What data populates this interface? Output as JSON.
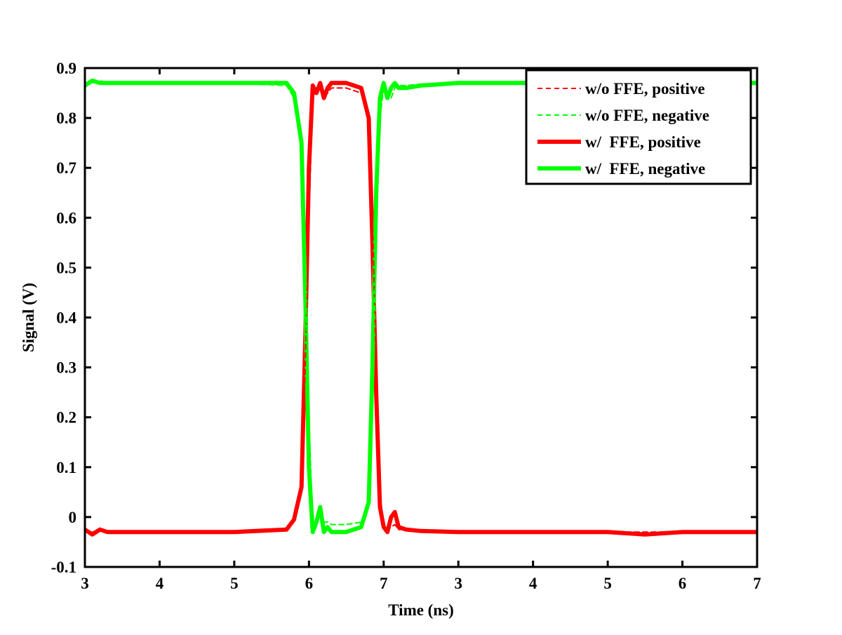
{
  "chart_data": {
    "type": "line",
    "title": "",
    "xlabel": "Time (ns)",
    "ylabel": "Signal (V)",
    "xlim": [
      0,
      9
    ],
    "ylim": [
      -0.1,
      0.9
    ],
    "x_tick_labels": [
      "3",
      "4",
      "5",
      "6",
      "7",
      "3",
      "4",
      "5",
      "6",
      "7"
    ],
    "y_ticks": [
      -0.1,
      0,
      0.1,
      0.2,
      0.3,
      0.4,
      0.5,
      0.6,
      0.7,
      0.8,
      0.9
    ],
    "y_tick_labels": [
      "-0.1",
      "0",
      "0.1",
      "0.2",
      "0.3",
      "0.4",
      "0.5",
      "0.6",
      "0.7",
      "0.8",
      "0.9"
    ],
    "grid": false,
    "legend_position": "top-right",
    "series": [
      {
        "name": "w/o FFE, positive",
        "color": "#ff0000",
        "style": "dashed",
        "x": [
          0,
          0.1,
          0.2,
          0.3,
          1.0,
          2.0,
          2.7,
          2.8,
          2.9,
          2.95,
          3.0,
          3.05,
          3.1,
          3.15,
          3.2,
          3.25,
          3.3,
          3.5,
          3.7,
          3.8,
          3.85,
          3.9,
          3.95,
          4.0,
          4.05,
          4.1,
          4.15,
          4.2,
          4.3,
          4.5,
          5.0,
          6.0,
          7.0,
          8.0,
          9.0
        ],
        "y": [
          -0.025,
          -0.03,
          -0.025,
          -0.03,
          -0.03,
          -0.03,
          -0.025,
          -0.01,
          0.05,
          0.3,
          0.6,
          0.84,
          0.86,
          0.86,
          0.84,
          0.85,
          0.86,
          0.86,
          0.85,
          0.8,
          0.6,
          0.3,
          0.05,
          -0.02,
          -0.025,
          -0.02,
          -0.015,
          -0.025,
          -0.025,
          -0.028,
          -0.03,
          -0.03,
          -0.03,
          -0.03,
          -0.03
        ]
      },
      {
        "name": "w/o FFE, negative",
        "color": "#00ff00",
        "style": "dashed",
        "x": [
          0,
          0.1,
          0.2,
          0.3,
          1.0,
          2.0,
          2.7,
          2.8,
          2.9,
          2.95,
          3.0,
          3.05,
          3.1,
          3.15,
          3.2,
          3.25,
          3.3,
          3.5,
          3.7,
          3.8,
          3.85,
          3.9,
          3.95,
          4.0,
          4.05,
          4.1,
          4.15,
          4.2,
          4.3,
          4.5,
          5.0,
          6.0,
          7.0,
          8.0,
          9.0
        ],
        "y": [
          0.865,
          0.87,
          0.875,
          0.87,
          0.87,
          0.87,
          0.865,
          0.84,
          0.75,
          0.5,
          0.2,
          -0.02,
          -0.01,
          0.01,
          -0.01,
          -0.01,
          -0.015,
          -0.015,
          -0.01,
          0.02,
          0.25,
          0.55,
          0.8,
          0.86,
          0.85,
          0.84,
          0.86,
          0.865,
          0.865,
          0.868,
          0.87,
          0.87,
          0.87,
          0.87,
          0.87
        ]
      },
      {
        "name": "w/  FFE, positive",
        "color": "#ff0000",
        "style": "solid",
        "x": [
          0,
          0.1,
          0.2,
          0.3,
          1.0,
          2.0,
          2.7,
          2.8,
          2.9,
          2.95,
          3.0,
          3.05,
          3.1,
          3.15,
          3.2,
          3.25,
          3.3,
          3.5,
          3.7,
          3.8,
          3.85,
          3.9,
          3.95,
          4.0,
          4.05,
          4.1,
          4.15,
          4.2,
          4.3,
          4.5,
          5.0,
          6.0,
          6.5,
          7.0,
          7.5,
          8.0,
          9.0
        ],
        "y": [
          -0.025,
          -0.035,
          -0.025,
          -0.03,
          -0.03,
          -0.03,
          -0.025,
          -0.005,
          0.06,
          0.35,
          0.7,
          0.865,
          0.85,
          0.87,
          0.84,
          0.86,
          0.87,
          0.87,
          0.86,
          0.8,
          0.55,
          0.25,
          0.02,
          -0.02,
          -0.03,
          0.0,
          0.01,
          -0.02,
          -0.025,
          -0.028,
          -0.03,
          -0.03,
          -0.03,
          -0.03,
          -0.035,
          -0.03,
          -0.03
        ]
      },
      {
        "name": "w/  FFE, negative",
        "color": "#00ff00",
        "style": "solid",
        "x": [
          0,
          0.1,
          0.2,
          0.3,
          1.0,
          2.0,
          2.7,
          2.8,
          2.9,
          2.95,
          3.0,
          3.05,
          3.1,
          3.15,
          3.2,
          3.25,
          3.3,
          3.5,
          3.7,
          3.8,
          3.85,
          3.9,
          3.95,
          4.0,
          4.05,
          4.1,
          4.15,
          4.2,
          4.3,
          4.5,
          5.0,
          6.0,
          7.0,
          8.0,
          9.0
        ],
        "y": [
          0.865,
          0.875,
          0.87,
          0.87,
          0.87,
          0.87,
          0.87,
          0.85,
          0.75,
          0.45,
          0.1,
          -0.03,
          -0.01,
          0.02,
          -0.03,
          -0.02,
          -0.03,
          -0.03,
          -0.02,
          0.03,
          0.3,
          0.65,
          0.84,
          0.87,
          0.84,
          0.86,
          0.87,
          0.86,
          0.86,
          0.865,
          0.87,
          0.87,
          0.87,
          0.87,
          0.87
        ]
      }
    ]
  }
}
